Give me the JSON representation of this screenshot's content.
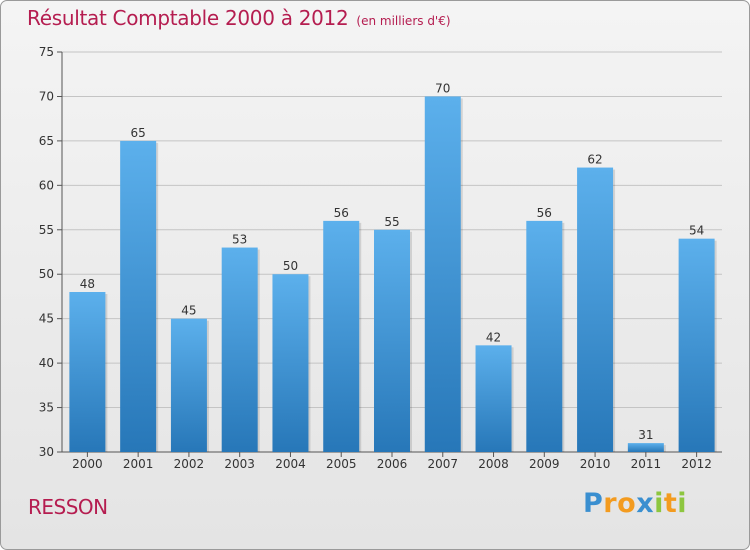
{
  "title": "Résultat Comptable 2000 à 2012",
  "subtitle": "(en milliers d'€)",
  "commune": "RESSON",
  "logo": {
    "letters": [
      {
        "char": "P",
        "color": "#3a8fd0"
      },
      {
        "char": "r",
        "color": "#f39b1f"
      },
      {
        "char": "o",
        "color": "#f39b1f"
      },
      {
        "char": "x",
        "color": "#3a8fd0"
      },
      {
        "char": "i",
        "color": "#8dc63f"
      },
      {
        "char": "t",
        "color": "#f39b1f"
      },
      {
        "char": "i",
        "color": "#8dc63f"
      }
    ]
  },
  "colors": {
    "title": "#b51d50",
    "bar_top": "#5cb0ec",
    "bar_bottom": "#2777b8",
    "axis": "#555555",
    "grid": "#c4c4c4",
    "text": "#333333"
  },
  "chart_data": {
    "type": "bar",
    "title": "Résultat Comptable 2000 à 2012",
    "ylabel": "en milliers d'€",
    "xlabel": "",
    "categories": [
      "2000",
      "2001",
      "2002",
      "2003",
      "2004",
      "2005",
      "2006",
      "2007",
      "2008",
      "2009",
      "2010",
      "2011",
      "2012"
    ],
    "values": [
      48,
      65,
      45,
      53,
      50,
      56,
      55,
      70,
      42,
      56,
      62,
      31,
      54
    ],
    "ylim": [
      30,
      75
    ],
    "yticks": [
      30,
      35,
      40,
      45,
      50,
      55,
      60,
      65,
      70,
      75
    ],
    "grid": true,
    "legend": "none"
  }
}
